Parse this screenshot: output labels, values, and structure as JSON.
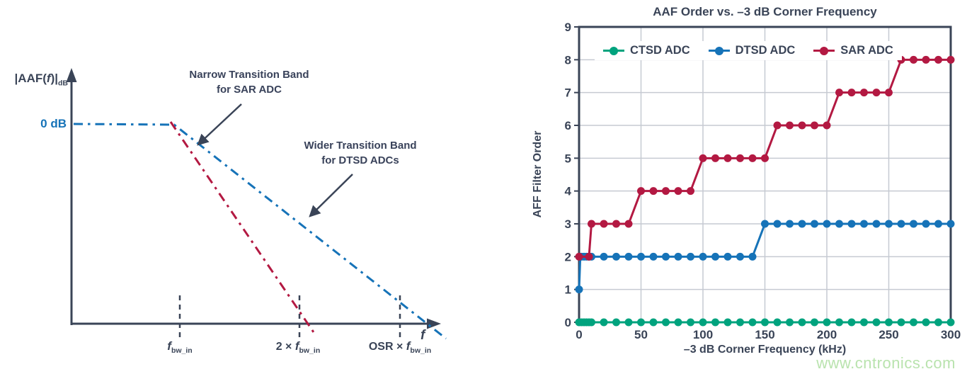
{
  "left_diagram": {
    "y_axis_label": {
      "pre": "|AAF(",
      "f": "f",
      "post": ")|",
      "sub": "dB"
    },
    "zero_db_label": "0 dB",
    "x_axis_label": "f",
    "annotations": {
      "narrow_line1": "Narrow Transition Band",
      "narrow_line2": "for SAR ADC",
      "wider_line1": "Wider Transition Band",
      "wider_line2": "for DTSD ADCs"
    },
    "x_ticks": [
      {
        "prefix": "",
        "f": "f",
        "sub": "bw_in"
      },
      {
        "prefix": "2 × ",
        "f": "f",
        "sub": "bw_in"
      },
      {
        "prefix": "OSR × ",
        "f": "f",
        "sub": "bw_in"
      }
    ],
    "colors": {
      "blue": "#1673b8",
      "red": "#b31942",
      "axis": "#3a4457"
    }
  },
  "chart_data": {
    "type": "line",
    "title": "AAF Order vs. –3 dB Corner Frequency",
    "xlabel": "–3 dB Corner Frequency (kHz)",
    "ylabel": "AFF Filter Order",
    "xlim": [
      0,
      300
    ],
    "ylim": [
      0,
      9
    ],
    "xticks": [
      0,
      50,
      100,
      150,
      200,
      250,
      300
    ],
    "yticks": [
      0,
      1,
      2,
      3,
      4,
      5,
      6,
      7,
      8,
      9
    ],
    "grid": true,
    "legend_position": "top-left-inside",
    "grid_color": "#c6cad2",
    "frame_color": "#3a4457",
    "series": [
      {
        "name": "CTSD ADC",
        "color": "#00a37e",
        "points": [
          [
            0,
            0
          ],
          [
            2,
            0
          ],
          [
            4,
            0
          ],
          [
            6,
            0
          ],
          [
            8,
            0
          ],
          [
            10,
            0
          ],
          [
            20,
            0
          ],
          [
            30,
            0
          ],
          [
            40,
            0
          ],
          [
            50,
            0
          ],
          [
            60,
            0
          ],
          [
            70,
            0
          ],
          [
            80,
            0
          ],
          [
            90,
            0
          ],
          [
            100,
            0
          ],
          [
            110,
            0
          ],
          [
            120,
            0
          ],
          [
            130,
            0
          ],
          [
            140,
            0
          ],
          [
            150,
            0
          ],
          [
            160,
            0
          ],
          [
            170,
            0
          ],
          [
            180,
            0
          ],
          [
            190,
            0
          ],
          [
            200,
            0
          ],
          [
            210,
            0
          ],
          [
            220,
            0
          ],
          [
            230,
            0
          ],
          [
            240,
            0
          ],
          [
            250,
            0
          ],
          [
            260,
            0
          ],
          [
            270,
            0
          ],
          [
            280,
            0
          ],
          [
            290,
            0
          ],
          [
            300,
            0
          ]
        ]
      },
      {
        "name": "DTSD ADC",
        "color": "#1673b8",
        "points": [
          [
            0,
            1
          ],
          [
            1,
            2
          ],
          [
            2,
            2
          ],
          [
            4,
            2
          ],
          [
            6,
            2
          ],
          [
            8,
            2
          ],
          [
            10,
            2
          ],
          [
            20,
            2
          ],
          [
            30,
            2
          ],
          [
            40,
            2
          ],
          [
            50,
            2
          ],
          [
            60,
            2
          ],
          [
            70,
            2
          ],
          [
            80,
            2
          ],
          [
            90,
            2
          ],
          [
            100,
            2
          ],
          [
            110,
            2
          ],
          [
            120,
            2
          ],
          [
            130,
            2
          ],
          [
            140,
            2
          ],
          [
            150,
            3
          ],
          [
            160,
            3
          ],
          [
            170,
            3
          ],
          [
            180,
            3
          ],
          [
            190,
            3
          ],
          [
            200,
            3
          ],
          [
            210,
            3
          ],
          [
            220,
            3
          ],
          [
            230,
            3
          ],
          [
            240,
            3
          ],
          [
            250,
            3
          ],
          [
            260,
            3
          ],
          [
            270,
            3
          ],
          [
            280,
            3
          ],
          [
            290,
            3
          ],
          [
            300,
            3
          ]
        ]
      },
      {
        "name": "SAR ADC",
        "color": "#b31942",
        "points": [
          [
            0,
            2
          ],
          [
            8,
            2
          ],
          [
            10,
            3
          ],
          [
            20,
            3
          ],
          [
            30,
            3
          ],
          [
            40,
            3
          ],
          [
            50,
            4
          ],
          [
            60,
            4
          ],
          [
            70,
            4
          ],
          [
            80,
            4
          ],
          [
            90,
            4
          ],
          [
            100,
            5
          ],
          [
            110,
            5
          ],
          [
            120,
            5
          ],
          [
            130,
            5
          ],
          [
            140,
            5
          ],
          [
            150,
            5
          ],
          [
            160,
            6
          ],
          [
            170,
            6
          ],
          [
            180,
            6
          ],
          [
            190,
            6
          ],
          [
            200,
            6
          ],
          [
            210,
            7
          ],
          [
            220,
            7
          ],
          [
            230,
            7
          ],
          [
            240,
            7
          ],
          [
            250,
            7
          ],
          [
            260,
            8
          ],
          [
            270,
            8
          ],
          [
            280,
            8
          ],
          [
            290,
            8
          ],
          [
            300,
            8
          ]
        ]
      }
    ]
  },
  "watermark": "www.cntronics.com"
}
